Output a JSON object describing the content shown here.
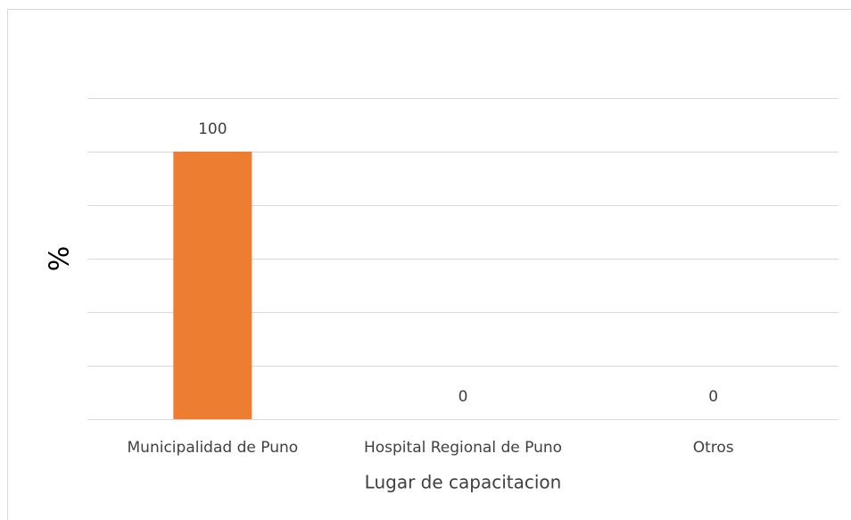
{
  "chart_data": {
    "type": "bar",
    "categories": [
      "Municipalidad de Puno",
      "Hospital Regional de Puno",
      "Otros"
    ],
    "values": [
      100,
      0,
      0
    ],
    "color": "#ed7d31",
    "xlabel": "Lugar de capacitacion",
    "ylabel": "%",
    "ylim": [
      0,
      120
    ],
    "yticks": [
      0,
      20,
      40,
      60,
      80,
      100,
      120
    ],
    "grid": true
  }
}
